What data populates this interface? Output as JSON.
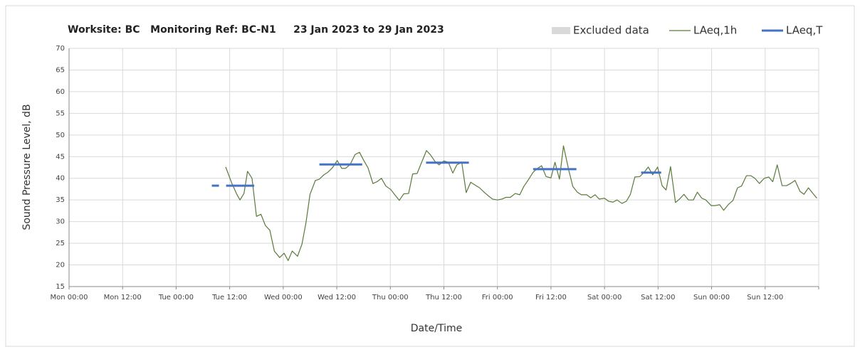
{
  "chart_data": {
    "type": "line",
    "title": "Worksite: BC   Monitoring Ref: BC-N1     23 Jan 2023 to 29 Jan 2023",
    "x_label": "Date/Time",
    "y_label": "Sound Pressure Level, dB",
    "excluded_data": {
      "label": "Excluded data",
      "color": "#d9d9d9"
    },
    "xlim": [
      0,
      168
    ],
    "xticks": [
      {
        "value": 0,
        "label": "Mon 00:00"
      },
      {
        "value": 12,
        "label": "Mon 12:00"
      },
      {
        "value": 24,
        "label": "Tue 00:00"
      },
      {
        "value": 36,
        "label": "Tue 12:00"
      },
      {
        "value": 48,
        "label": "Wed 00:00"
      },
      {
        "value": 60,
        "label": "Wed 12:00"
      },
      {
        "value": 72,
        "label": "Thu 00:00"
      },
      {
        "value": 84,
        "label": "Thu 12:00"
      },
      {
        "value": 96,
        "label": "Fri 00:00"
      },
      {
        "value": 108,
        "label": "Fri 12:00"
      },
      {
        "value": 120,
        "label": "Sat 00:00"
      },
      {
        "value": 132,
        "label": "Sat 12:00"
      },
      {
        "value": 144,
        "label": "Sun 00:00"
      },
      {
        "value": 156,
        "label": "Sun 12:00"
      },
      {
        "value": 168,
        "label": ""
      }
    ],
    "ylim": [
      15,
      70
    ],
    "yticks": [
      15,
      20,
      25,
      30,
      35,
      40,
      45,
      50,
      55,
      60,
      65,
      70
    ],
    "grid": true,
    "series": [
      {
        "name": "LAeq,1h",
        "color": "#5a7a3a",
        "width": 1.2,
        "x": [
          35.1,
          36.5,
          37.5,
          38.3,
          39.2,
          40,
          41,
          42,
          43,
          44,
          45,
          46,
          47.2,
          48.2,
          49.1,
          50,
          51.2,
          52.2,
          53.1,
          54,
          55.2,
          56.1,
          57.1,
          58,
          59,
          60.1,
          61.1,
          62,
          63,
          64.1,
          65.1,
          66,
          67,
          68.1,
          69,
          70,
          71,
          72.1,
          73,
          74,
          75,
          76.1,
          77,
          78,
          78.9,
          80.1,
          81,
          82,
          82.9,
          84,
          85,
          86,
          86.9,
          88,
          89,
          90,
          90.9,
          92,
          93,
          93.9,
          94.9,
          96,
          97,
          97.9,
          98.9,
          100,
          101,
          101.9,
          102.9,
          104,
          105,
          105.9,
          106.9,
          108,
          108.9,
          109.9,
          110.8,
          112,
          112.9,
          113.9,
          114.8,
          116,
          116.9,
          117.9,
          118.8,
          120,
          120.9,
          121.9,
          122.8,
          123.9,
          124.9,
          125.8,
          126.8,
          127.9,
          128.9,
          129.8,
          130.8,
          131.9,
          132.9,
          133.8,
          134.8,
          135.9,
          136.8,
          137.8,
          138.8,
          139.9,
          140.8,
          141.8,
          142.7,
          143.9,
          144.8,
          145.8,
          146.7,
          147.8,
          148.8,
          149.8,
          150.7,
          151.8,
          152.8,
          153.7,
          154.7,
          155.8,
          156.8,
          157.7,
          158.7,
          159.8,
          160.8,
          161.7,
          162.7,
          163.8,
          164.7,
          165.7,
          166.7,
          167.6
        ],
        "values": [
          42.6,
          38.8,
          36.5,
          35,
          36.5,
          41.6,
          40,
          31.2,
          31.7,
          29.1,
          28,
          23.2,
          21.7,
          22.7,
          21,
          23.2,
          22,
          24.8,
          29.8,
          36.3,
          39.5,
          39.8,
          40.8,
          41.4,
          42.4,
          44.1,
          42.3,
          42.3,
          43.2,
          45.5,
          46,
          44.2,
          42.4,
          38.8,
          39.2,
          40,
          38.2,
          37.4,
          36.2,
          34.9,
          36.4,
          36.5,
          41,
          41.1,
          43.4,
          46.4,
          45.4,
          43.9,
          43.1,
          44,
          43.7,
          41.2,
          43.1,
          43.7,
          36.7,
          39.1,
          38.5,
          37.8,
          36.8,
          36,
          35.2,
          35,
          35.2,
          35.6,
          35.6,
          36.5,
          36.2,
          38.1,
          39.6,
          41.4,
          42.3,
          42.9,
          40.4,
          40.1,
          43.7,
          39.8,
          47.5,
          41.8,
          38.1,
          36.8,
          36.2,
          36.2,
          35.5,
          36.2,
          35.2,
          35.4,
          34.7,
          34.5,
          35,
          34.2,
          34.7,
          36.3,
          40.3,
          40.4,
          41.4,
          42.6,
          40.8,
          42.6,
          38.3,
          37.3,
          42.7,
          34.4,
          35.2,
          36.3,
          35,
          35,
          36.8,
          35.4,
          35,
          33.7,
          33.7,
          33.9,
          32.6,
          34,
          34.9,
          37.8,
          38.2,
          40.6,
          40.6,
          40,
          38.8,
          40,
          40.3,
          39.2,
          43.1,
          38.3,
          38.3,
          38.8,
          39.5,
          37,
          36.3,
          37.8,
          36.5,
          35.4
        ]
      },
      {
        "name": "LAeq,T",
        "color": "#4472c4",
        "width": 3,
        "x": [
          32,
          33.6,
          null,
          35.2,
          41.5,
          null,
          56.1,
          65.7,
          null,
          80,
          89.6,
          null,
          104,
          113.7,
          null,
          128.2,
          132.7
        ],
        "values": [
          38.3,
          38.3,
          null,
          38.3,
          38.3,
          null,
          43.2,
          43.2,
          null,
          43.6,
          43.6,
          null,
          42.1,
          42.1,
          null,
          41.3,
          41.3
        ]
      }
    ]
  }
}
